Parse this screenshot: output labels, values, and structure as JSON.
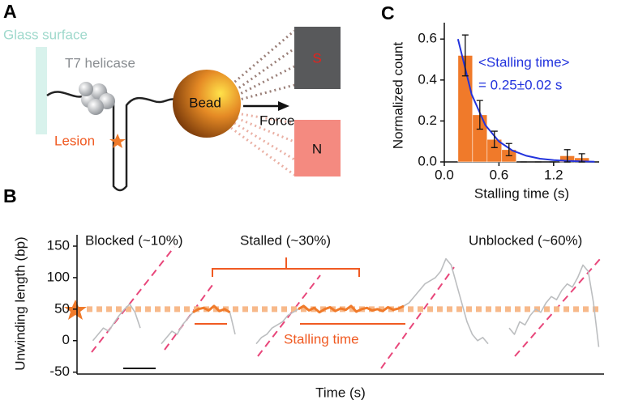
{
  "panels": [
    "A",
    "B",
    "C"
  ],
  "diagram": {
    "glass": "Glass surface",
    "helicase": "T7 helicase",
    "bead": "Bead",
    "force": "Force",
    "lesion": "Lesion",
    "south": "S",
    "north": "N"
  },
  "chart_data": [
    {
      "type": "histogram",
      "xlabel": "Stalling time (s)",
      "ylabel": "Normalized count",
      "bins": [
        0.15,
        0.31,
        0.47,
        0.63,
        0.79,
        0.95,
        1.11,
        1.27,
        1.43,
        1.59
      ],
      "values": [
        0.52,
        0.23,
        0.11,
        0.06,
        0,
        0,
        0,
        0.03,
        0.02
      ],
      "errors": [
        0.1,
        0.07,
        0.04,
        0.03,
        0,
        0,
        0,
        0.03,
        0.02
      ],
      "color": "#f07a2a",
      "fit": {
        "color": "#2233dd",
        "x": [
          0.15,
          0.3,
          0.45,
          0.6,
          0.75,
          0.9,
          1.05,
          1.2,
          1.35,
          1.5,
          1.65
        ],
        "values": [
          0.6,
          0.33,
          0.18,
          0.1,
          0.055,
          0.03,
          0.016,
          0.009,
          0.005,
          0.003,
          0.001
        ]
      },
      "annotations": [
        "<Stalling time>",
        "= 0.25±0.02 s"
      ],
      "annotation_color": "#2233dd",
      "xlim": [
        0,
        1.7
      ],
      "ylim": [
        0,
        0.68
      ],
      "xticks": [
        {
          "value": 0,
          "label": "0.0"
        },
        0.6,
        1.2
      ],
      "yticks": [
        {
          "value": 0,
          "label": "0.0"
        },
        0.2,
        0.4,
        0.6
      ]
    },
    {
      "type": "line",
      "xlabel": "Time (s)",
      "ylabel": "Unwinding length (bp)",
      "xlim": [
        0,
        100
      ],
      "ylim": [
        -53,
        168
      ],
      "yticks": [
        -50,
        0,
        50,
        100,
        150
      ],
      "hline": 50,
      "hline_color": "#f7b98a",
      "series": [
        {
          "color": "#bcbec0",
          "x": [
            3,
            4,
            5,
            6,
            7,
            8,
            9,
            10,
            11,
            12
          ],
          "values": [
            0,
            10,
            20,
            15,
            28,
            40,
            50,
            58,
            45,
            20
          ]
        },
        {
          "color": "#bcbec0",
          "x": [
            16,
            17,
            18,
            19,
            20,
            21,
            22,
            23,
            24,
            25,
            26,
            27,
            28,
            29,
            30
          ],
          "values": [
            -5,
            5,
            15,
            10,
            25,
            35,
            45,
            50,
            52,
            48,
            55,
            47,
            50,
            45,
            10
          ]
        },
        {
          "color": "#bcbec0",
          "x": [
            34,
            35,
            36,
            37,
            38,
            39,
            40,
            41,
            42,
            43,
            44,
            45,
            46,
            47,
            48,
            49,
            50,
            51,
            52,
            53,
            54,
            55,
            56,
            57,
            58,
            59,
            60,
            61,
            62,
            63,
            64,
            65,
            66,
            67,
            68,
            69,
            70,
            71,
            72,
            73,
            74,
            75,
            76,
            77,
            78
          ],
          "values": [
            -5,
            5,
            10,
            20,
            25,
            30,
            40,
            45,
            50,
            55,
            48,
            52,
            45,
            50,
            53,
            47,
            51,
            49,
            55,
            46,
            50,
            52,
            48,
            50,
            47,
            53,
            49,
            51,
            55,
            60,
            70,
            80,
            90,
            95,
            100,
            110,
            130,
            120,
            90,
            60,
            30,
            10,
            0,
            5,
            -5
          ]
        },
        {
          "color": "#bcbec0",
          "x": [
            82,
            83,
            84,
            85,
            86,
            87,
            88,
            89,
            90,
            91,
            92,
            93,
            94,
            95,
            96,
            97,
            98,
            99
          ],
          "values": [
            20,
            10,
            30,
            25,
            40,
            50,
            45,
            60,
            70,
            65,
            80,
            90,
            85,
            100,
            120,
            110,
            60,
            -10
          ]
        },
        {
          "color": "#f07a2a",
          "x": [
            22,
            23,
            24,
            25,
            26,
            27,
            28,
            29
          ],
          "values": [
            45,
            50,
            52,
            48,
            55,
            47,
            50,
            45
          ]
        },
        {
          "color": "#f07a2a",
          "x": [
            42,
            43,
            44,
            45,
            46,
            47,
            48,
            49,
            50,
            51,
            52,
            53,
            54,
            55,
            56,
            57,
            58,
            59,
            60,
            61,
            62
          ],
          "values": [
            50,
            55,
            48,
            52,
            45,
            50,
            53,
            47,
            51,
            49,
            55,
            46,
            50,
            52,
            48,
            50,
            47,
            53,
            49,
            51,
            55
          ]
        }
      ],
      "annotations": [
        "Blocked (~10%)",
        "Stalled (~30%)",
        "Unblocked (~60%)",
        "Stalling time"
      ]
    }
  ]
}
